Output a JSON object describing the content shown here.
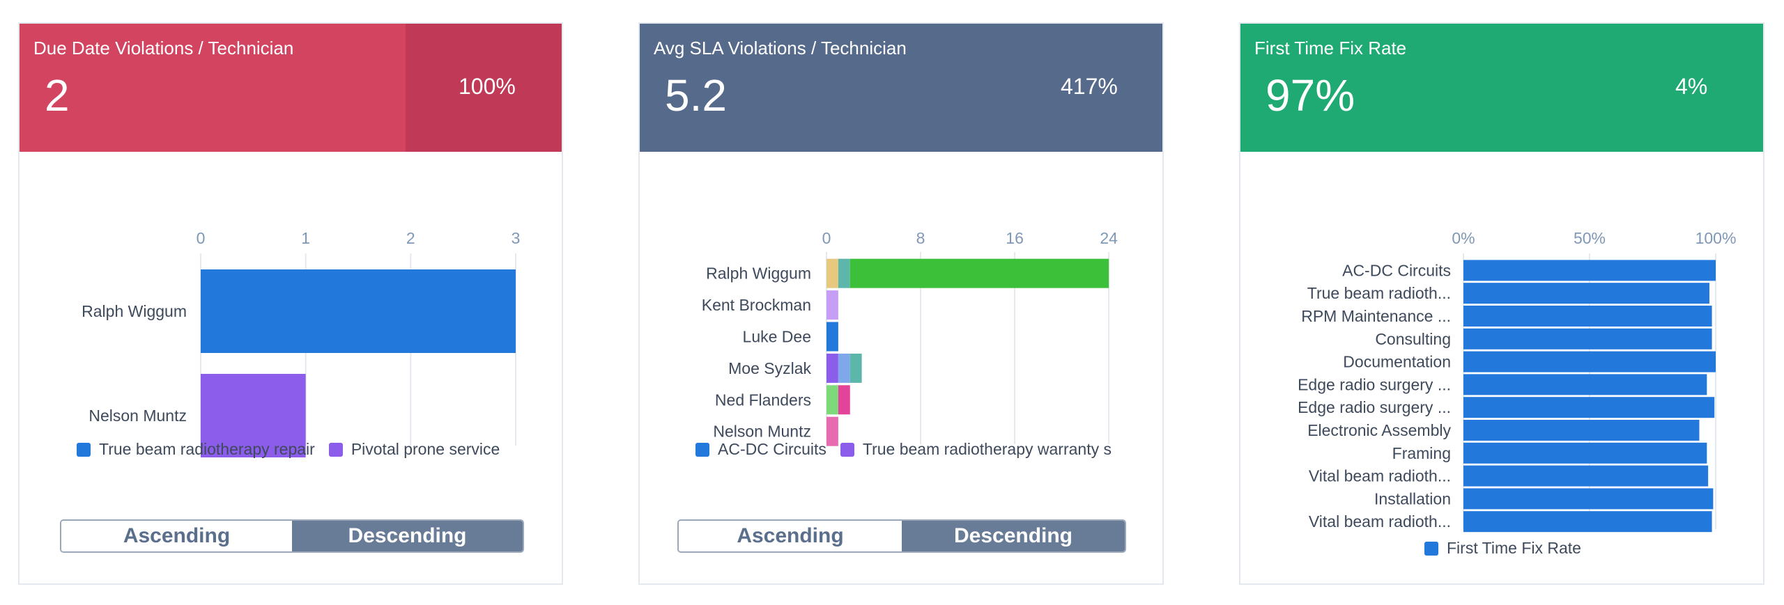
{
  "colors": {
    "violations_header": "#d2445f",
    "violations_accent": "#c03a57",
    "sla_header": "#566a8c",
    "fix_header": "#1faa74",
    "blue": "#2279db",
    "purple": "#8c5ceb",
    "green": "#3cc03a",
    "tan": "#e6c87e",
    "teal": "#5cb6aa",
    "lavender": "#c79ef5",
    "pink": "#e76baf",
    "mint": "#7ed97a",
    "magenta": "#e3449a"
  },
  "cards": [
    {
      "title": "Due Date Violations  /  Technician",
      "value": "2",
      "change": "100%",
      "legend": [
        {
          "label": "True beam radiotherapy repair",
          "color": "#2279db"
        },
        {
          "label": "Pivotal prone service",
          "color": "#8c5ceb"
        }
      ],
      "sort": {
        "ascending": "Ascending",
        "descending": "Descending",
        "active": "descending"
      }
    },
    {
      "title": "Avg SLA Violations  /  Technician",
      "value": "5.2",
      "change": "417%",
      "legend": [
        {
          "label": "AC-DC Circuits",
          "color": "#2279db"
        },
        {
          "label": "True beam radiotherapy warranty s",
          "color": "#8c5ceb"
        }
      ],
      "sort": {
        "ascending": "Ascending",
        "descending": "Descending",
        "active": "descending"
      }
    },
    {
      "title": "First Time Fix Rate",
      "value": "97%",
      "change": "4%",
      "legend": [
        {
          "label": "First Time Fix Rate",
          "color": "#2279db"
        }
      ]
    }
  ],
  "chart_data": [
    {
      "type": "bar",
      "orientation": "horizontal",
      "stacked": true,
      "categories": [
        "Ralph Wiggum",
        "Nelson Muntz"
      ],
      "series": [
        {
          "name": "True beam radiotherapy repair",
          "color": "#2279db",
          "values": [
            3,
            0
          ]
        },
        {
          "name": "Pivotal prone service",
          "color": "#8c5ceb",
          "values": [
            0,
            1
          ]
        }
      ],
      "xlim": [
        0,
        3
      ],
      "xticks": [
        "0",
        "1",
        "2",
        "3"
      ],
      "grid": true,
      "legend": "bottom"
    },
    {
      "type": "bar",
      "orientation": "horizontal",
      "stacked": true,
      "categories": [
        "Ralph Wiggum",
        "Kent Brockman",
        "Luke Dee",
        "Moe Syzlak",
        "Ned Flanders",
        "Nelson Muntz"
      ],
      "segments": [
        [
          {
            "value": 1,
            "color": "#e6c87e"
          },
          {
            "value": 1,
            "color": "#5cb6aa"
          },
          {
            "value": 22,
            "color": "#3cc03a"
          }
        ],
        [
          {
            "value": 1,
            "color": "#c79ef5"
          }
        ],
        [
          {
            "value": 1,
            "color": "#2279db"
          }
        ],
        [
          {
            "value": 1,
            "color": "#8c5ceb"
          },
          {
            "value": 1,
            "color": "#7fa8ea"
          },
          {
            "value": 1,
            "color": "#5cb6aa"
          }
        ],
        [
          {
            "value": 1,
            "color": "#7ed97a"
          },
          {
            "value": 1,
            "color": "#e3449a"
          }
        ],
        [
          {
            "value": 1,
            "color": "#e76baf"
          }
        ]
      ],
      "xlim": [
        0,
        25
      ],
      "xticks": [
        "0",
        "8",
        "16",
        "24"
      ],
      "grid": true,
      "legend": "bottom"
    },
    {
      "type": "bar",
      "orientation": "horizontal",
      "categories": [
        "AC-DC Circuits",
        "True beam radioth...",
        "RPM Maintenance ...",
        "Consulting",
        "Documentation",
        "Edge radio surgery ...",
        "Edge radio surgery ...",
        "Electronic Assembly",
        "Framing",
        "Vital beam radioth...",
        "Installation",
        "Vital beam radioth..."
      ],
      "series": [
        {
          "name": "First Time Fix Rate",
          "color": "#2279db",
          "values": [
            100,
            97.5,
            98.5,
            98.5,
            100,
            96.5,
            99.5,
            93.5,
            96.5,
            97,
            99,
            98.5
          ]
        }
      ],
      "xlim": [
        0,
        100
      ],
      "xticks": [
        "0%",
        "50%",
        "100%"
      ],
      "grid": true,
      "legend": "bottom"
    }
  ]
}
